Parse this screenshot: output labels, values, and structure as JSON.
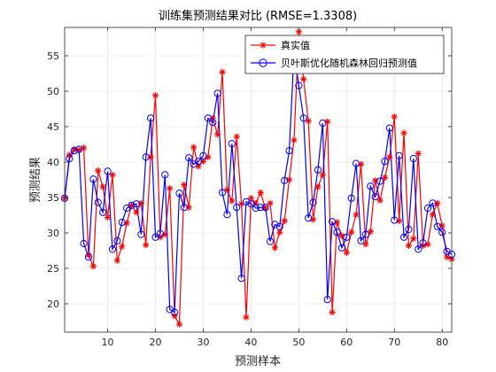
{
  "chart_data": {
    "type": "line",
    "title": "训练集预测结果对比 (RMSE=1.3308)",
    "xlabel": "预测样本",
    "ylabel": "预测结果",
    "xlim": [
      1,
      82
    ],
    "ylim": [
      16,
      59
    ],
    "xticks": [
      10,
      20,
      30,
      40,
      50,
      60,
      70,
      80
    ],
    "yticks": [
      20,
      25,
      30,
      35,
      40,
      45,
      50,
      55
    ],
    "grid": true,
    "legend_position": "top-right",
    "series": [
      {
        "name": "真实值",
        "color": "#ff0000",
        "marker": "asterisk",
        "values": [
          34.9,
          41.0,
          41.8,
          41.7,
          42.0,
          26.9,
          25.3,
          38.8,
          36.5,
          32.2,
          38.2,
          26.1,
          28.1,
          31.4,
          33.9,
          32.9,
          34.2,
          28.3,
          40.7,
          49.4,
          29.4,
          29.8,
          36.3,
          18.3,
          17.1,
          36.8,
          33.6,
          42.1,
          39.4,
          40.1,
          40.7,
          46.2,
          43.9,
          52.7,
          36.1,
          34.5,
          43.6,
          34.1,
          18.1,
          34.9,
          34.2,
          35.7,
          33.5,
          34.2,
          27.9,
          30.1,
          31.7,
          37.5,
          43.1,
          58.4,
          51.7,
          45.8,
          31.9,
          36.5,
          38.2,
          45.7,
          18.8,
          31.5,
          29.6,
          27.2,
          30.1,
          32.6,
          39.7,
          28.4,
          30.2,
          37.4,
          34.6,
          37.8,
          40.7,
          46.4,
          31.7,
          44.1,
          28.2,
          29.2,
          41.2,
          28.2,
          28.4,
          32.6,
          34.2,
          31.0,
          26.6,
          26.3
        ],
        "fit_to_view": true
      },
      {
        "name": "贝叶斯优化随机森林回归预测值",
        "color": "#0000ff",
        "marker": "circle",
        "values": [
          34.9,
          40.5,
          41.6,
          41.8,
          28.5,
          26.6,
          37.6,
          34.3,
          32.9,
          38.7,
          27.7,
          28.9,
          31.5,
          33.5,
          33.9,
          34.1,
          29.8,
          40.7,
          46.2,
          29.4,
          29.9,
          38.2,
          19.2,
          18.8,
          35.6,
          33.6,
          40.6,
          39.7,
          40.1,
          40.9,
          46.2,
          45.6,
          49.7,
          35.7,
          32.6,
          42.6,
          33.6,
          23.6,
          34.4,
          34.1,
          33.5,
          33.6,
          33.6,
          28.8,
          31.2,
          30.9,
          37.4,
          41.6,
          55.4,
          50.8,
          46.2,
          32.1,
          34.3,
          38.9,
          45.5,
          20.6,
          31.6,
          30.1,
          27.9,
          29.4,
          34.9,
          39.8,
          28.9,
          29.8,
          36.6,
          35.1,
          37.3,
          40.1,
          44.8,
          31.8,
          40.9,
          29.4,
          30.5,
          40.5,
          27.7,
          28.6,
          33.5,
          34.2,
          30.9,
          30.1,
          27.4,
          27.0
        ],
        "fit_to_view": true
      }
    ]
  }
}
